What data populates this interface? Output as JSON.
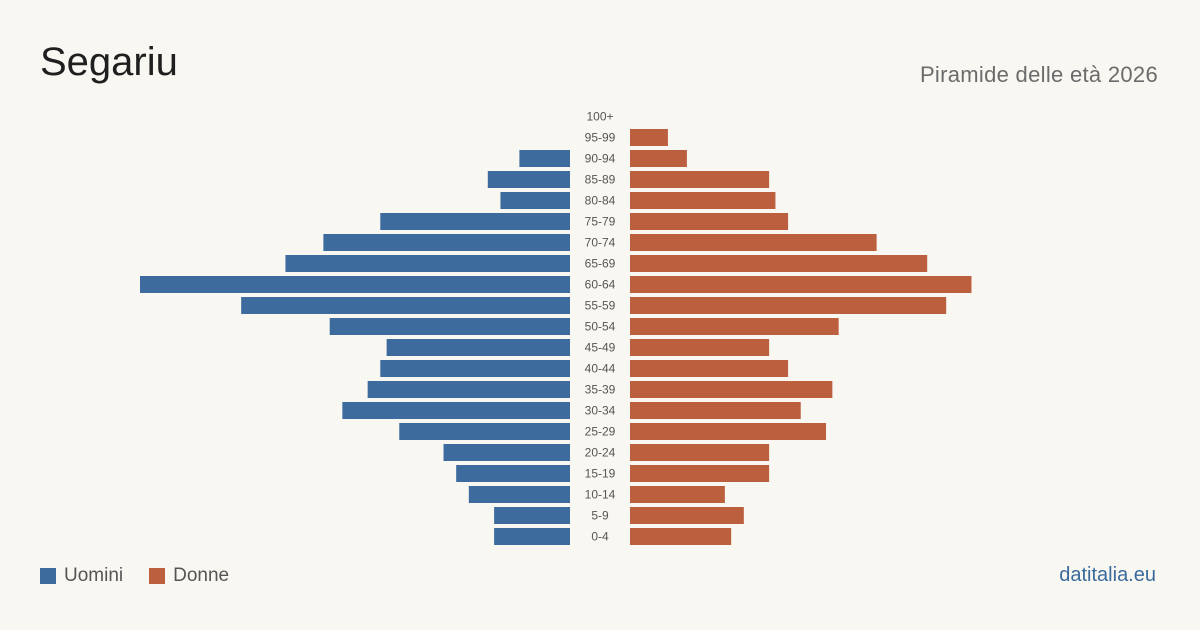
{
  "header": {
    "title": "Segariu",
    "subtitle": "Piramide delle età 2026"
  },
  "legend": {
    "men_label": "Uomini",
    "women_label": "Donne"
  },
  "brand": "datitalia.eu",
  "colors": {
    "men": "#3d6b9d",
    "women": "#bc5f3e",
    "background": "#f9f7f2"
  },
  "chart_data": {
    "type": "bar",
    "orientation": "horizontal-pyramid",
    "categories": [
      "100+",
      "95-99",
      "90-94",
      "85-89",
      "80-84",
      "75-79",
      "70-74",
      "65-69",
      "60-64",
      "55-59",
      "50-54",
      "45-49",
      "40-44",
      "35-39",
      "30-34",
      "25-29",
      "20-24",
      "15-19",
      "10-14",
      "5-9",
      "0-4"
    ],
    "series": [
      {
        "name": "Uomini",
        "values": [
          0,
          0,
          8,
          13,
          11,
          30,
          39,
          45,
          68,
          52,
          38,
          29,
          30,
          32,
          36,
          27,
          20,
          18,
          16,
          12,
          12
        ]
      },
      {
        "name": "Donne",
        "values": [
          0,
          6,
          9,
          22,
          23,
          25,
          39,
          47,
          54,
          50,
          33,
          22,
          25,
          32,
          27,
          31,
          22,
          22,
          15,
          18,
          16
        ]
      }
    ],
    "grid": false,
    "legend_position": "bottom-left"
  }
}
